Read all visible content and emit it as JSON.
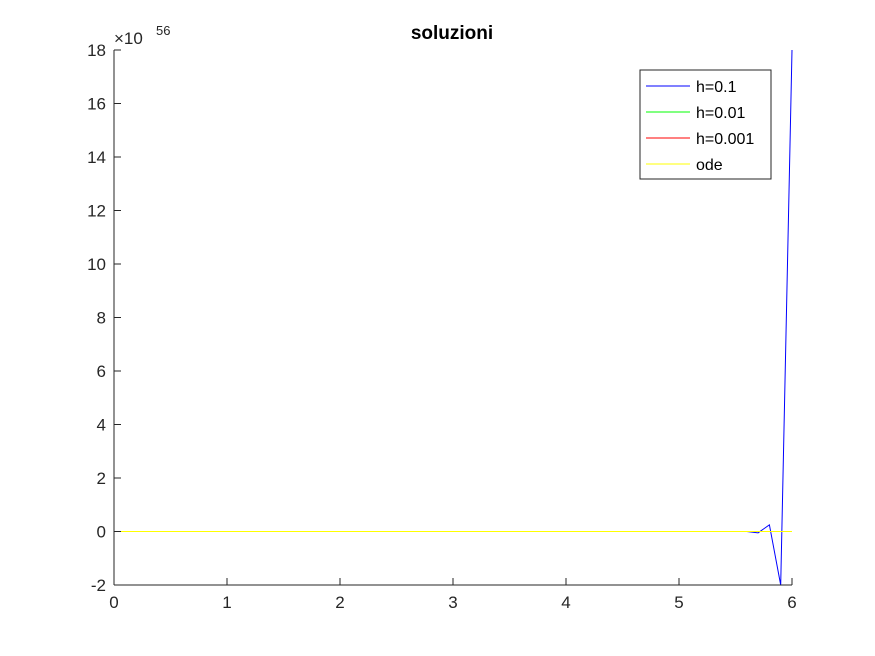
{
  "chart_data": {
    "type": "line",
    "title": "soluzioni",
    "xlabel": "",
    "ylabel": "",
    "xlim": [
      0,
      6
    ],
    "ylim": [
      -2,
      18
    ],
    "y_exponent_base": "×10",
    "y_exponent_power": "56",
    "x_ticks": [
      "0",
      "1",
      "2",
      "3",
      "4",
      "5",
      "6"
    ],
    "y_ticks": [
      "-2",
      "0",
      "2",
      "4",
      "6",
      "8",
      "10",
      "12",
      "14",
      "16",
      "18"
    ],
    "x_tick_values": [
      0,
      1,
      2,
      3,
      4,
      5,
      6
    ],
    "y_tick_values": [
      -2,
      0,
      2,
      4,
      6,
      8,
      10,
      12,
      14,
      16,
      18
    ],
    "grid": false,
    "legend_position": "top-right",
    "series": [
      {
        "name": "h=0.1",
        "color": "#0000ff",
        "x": [
          0,
          5.5,
          5.6,
          5.7,
          5.8,
          5.9,
          6.0
        ],
        "y": [
          0,
          0,
          0,
          -0.05,
          0.25,
          -2.0,
          18.0
        ]
      },
      {
        "name": "h=0.01",
        "color": "#00ff00",
        "x": [
          0,
          6.0
        ],
        "y": [
          0,
          0
        ]
      },
      {
        "name": "h=0.001",
        "color": "#ff0000",
        "x": [
          0,
          6.0
        ],
        "y": [
          0,
          0
        ]
      },
      {
        "name": "ode",
        "color": "#ffff00",
        "x": [
          0,
          6.0
        ],
        "y": [
          0,
          0
        ]
      }
    ]
  }
}
